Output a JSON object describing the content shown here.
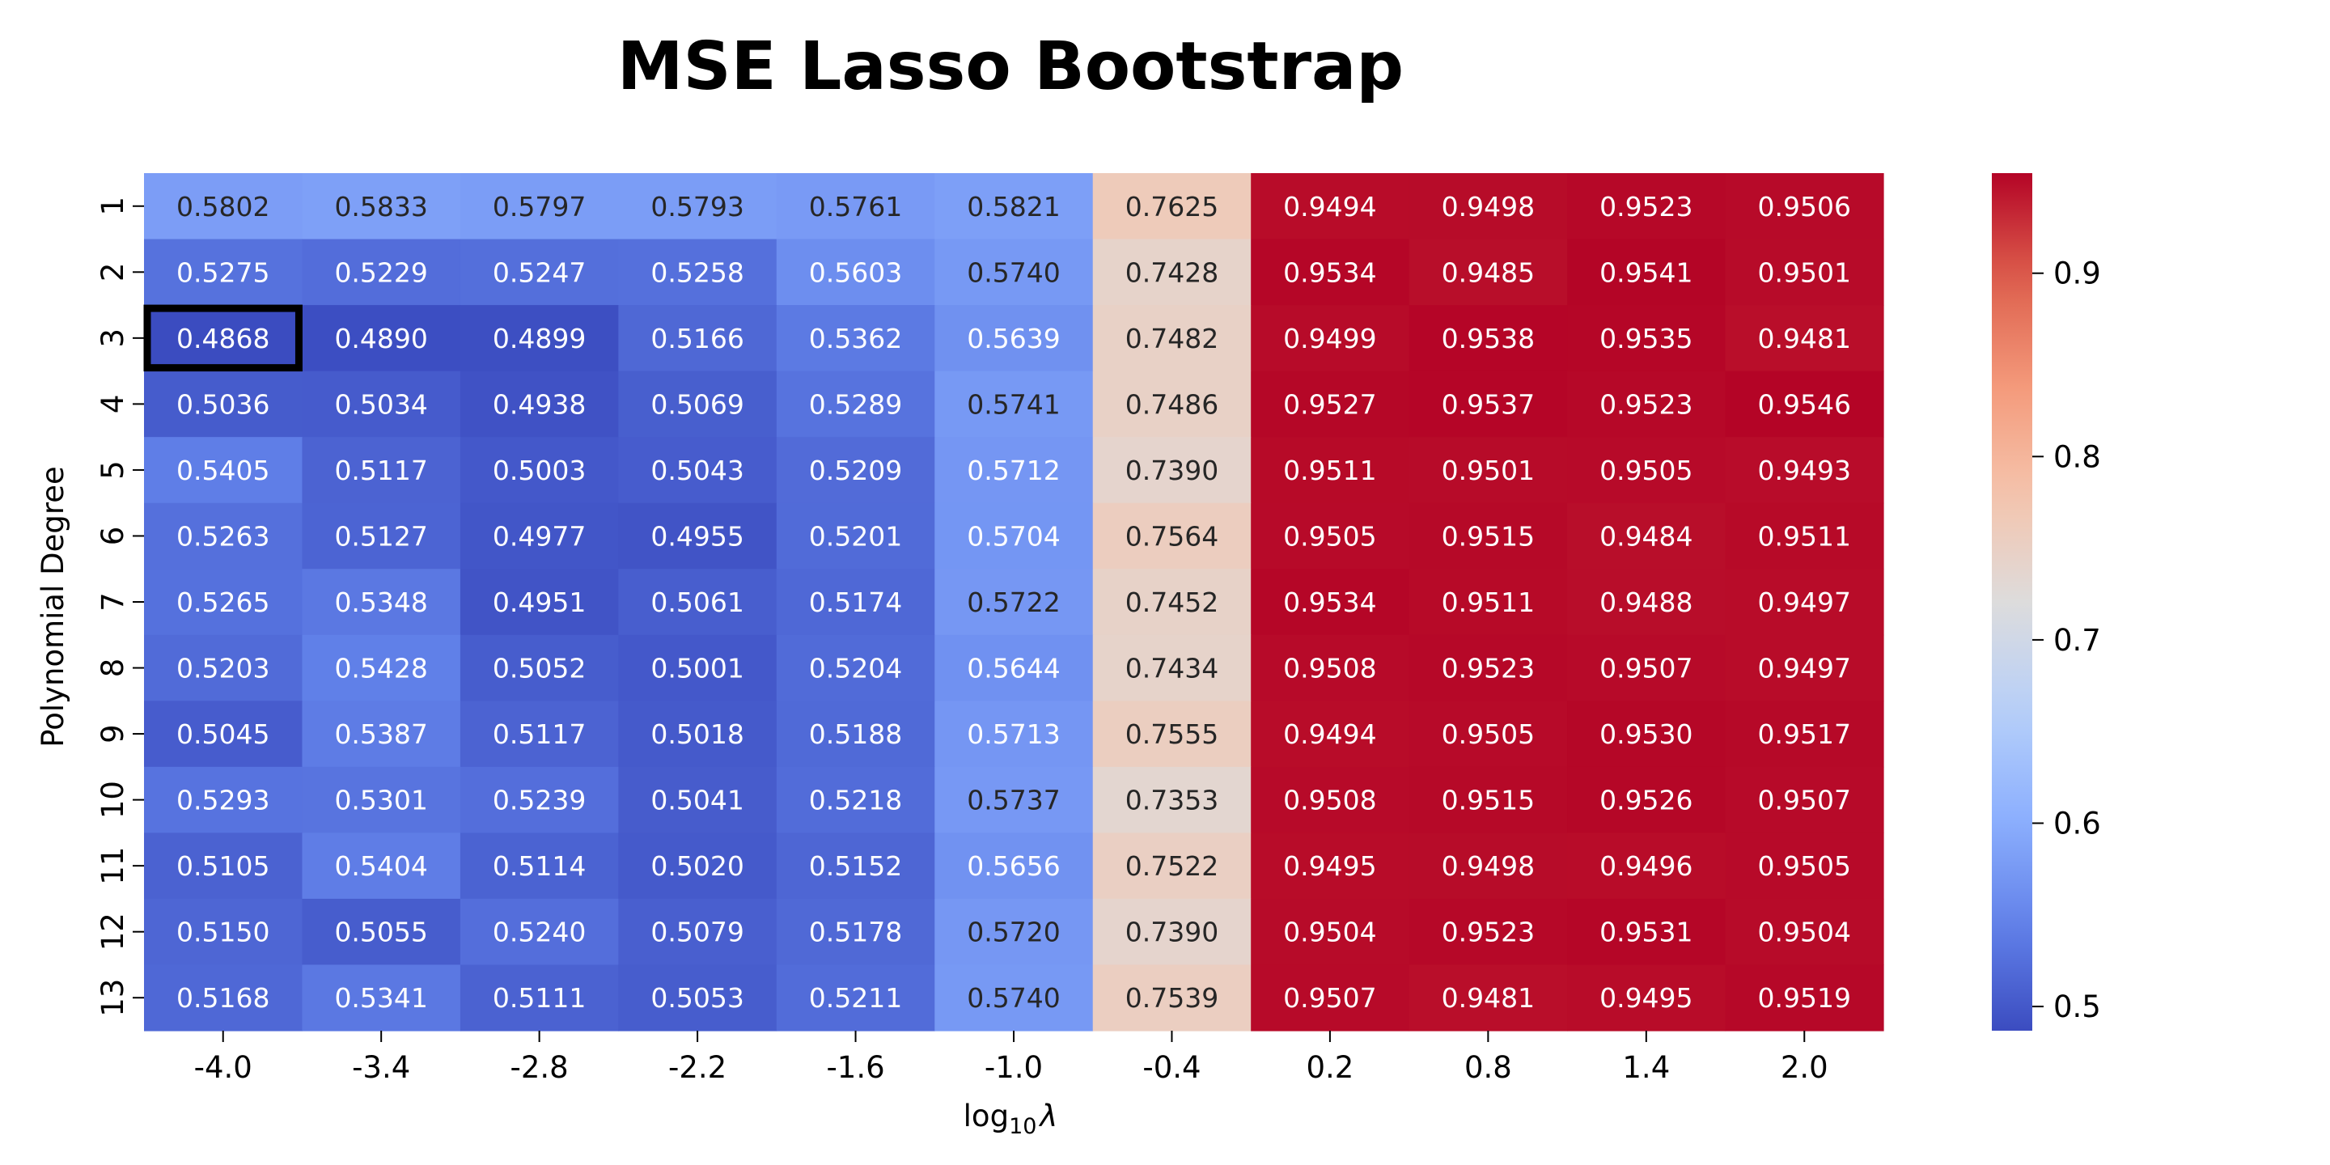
{
  "chart_data": {
    "type": "heatmap",
    "title": "MSE Lasso Bootstrap",
    "xlabel": "log",
    "xlabel_subscript": "10",
    "xlabel_symbol": "λ",
    "ylabel": "Polynomial Degree",
    "x_ticks": [
      "-4.0",
      "-3.4",
      "-2.8",
      "-2.2",
      "-1.6",
      "-1.0",
      "-0.4",
      "0.2",
      "0.8",
      "1.4",
      "2.0"
    ],
    "y_ticks": [
      "1",
      "2",
      "3",
      "4",
      "5",
      "6",
      "7",
      "8",
      "9",
      "10",
      "11",
      "12",
      "13"
    ],
    "values": [
      [
        0.5802,
        0.5833,
        0.5797,
        0.5793,
        0.5761,
        0.5821,
        0.7625,
        0.9494,
        0.9498,
        0.9523,
        0.9506
      ],
      [
        0.5275,
        0.5229,
        0.5247,
        0.5258,
        0.5603,
        0.574,
        0.7428,
        0.9534,
        0.9485,
        0.9541,
        0.9501
      ],
      [
        0.4868,
        0.489,
        0.4899,
        0.5166,
        0.5362,
        0.5639,
        0.7482,
        0.9499,
        0.9538,
        0.9535,
        0.9481
      ],
      [
        0.5036,
        0.5034,
        0.4938,
        0.5069,
        0.5289,
        0.5741,
        0.7486,
        0.9527,
        0.9537,
        0.9523,
        0.9546
      ],
      [
        0.5405,
        0.5117,
        0.5003,
        0.5043,
        0.5209,
        0.5712,
        0.739,
        0.9511,
        0.9501,
        0.9505,
        0.9493
      ],
      [
        0.5263,
        0.5127,
        0.4977,
        0.4955,
        0.5201,
        0.5704,
        0.7564,
        0.9505,
        0.9515,
        0.9484,
        0.9511
      ],
      [
        0.5265,
        0.5348,
        0.4951,
        0.5061,
        0.5174,
        0.5722,
        0.7452,
        0.9534,
        0.9511,
        0.9488,
        0.9497
      ],
      [
        0.5203,
        0.5428,
        0.5052,
        0.5001,
        0.5204,
        0.5644,
        0.7434,
        0.9508,
        0.9523,
        0.9507,
        0.9497
      ],
      [
        0.5045,
        0.5387,
        0.5117,
        0.5018,
        0.5188,
        0.5713,
        0.7555,
        0.9494,
        0.9505,
        0.953,
        0.9517
      ],
      [
        0.5293,
        0.5301,
        0.5239,
        0.5041,
        0.5218,
        0.5737,
        0.7353,
        0.9508,
        0.9515,
        0.9526,
        0.9507
      ],
      [
        0.5105,
        0.5404,
        0.5114,
        0.502,
        0.5152,
        0.5656,
        0.7522,
        0.9495,
        0.9498,
        0.9496,
        0.9505
      ],
      [
        0.515,
        0.5055,
        0.524,
        0.5079,
        0.5178,
        0.572,
        0.739,
        0.9504,
        0.9523,
        0.9531,
        0.9504
      ],
      [
        0.5168,
        0.5341,
        0.5111,
        0.5053,
        0.5211,
        0.574,
        0.7539,
        0.9507,
        0.9481,
        0.9495,
        0.9519
      ]
    ],
    "highlight": {
      "row": 2,
      "col": 0
    },
    "colormap": "coolwarm",
    "color_range": [
      0.4868,
      0.9546
    ],
    "colorbar_ticks": [
      "0.5",
      "0.6",
      "0.7",
      "0.8",
      "0.9"
    ],
    "colorbar_tick_values": [
      0.5,
      0.6,
      0.7,
      0.8,
      0.9
    ],
    "highlight_color": "#000000",
    "grid": false
  }
}
